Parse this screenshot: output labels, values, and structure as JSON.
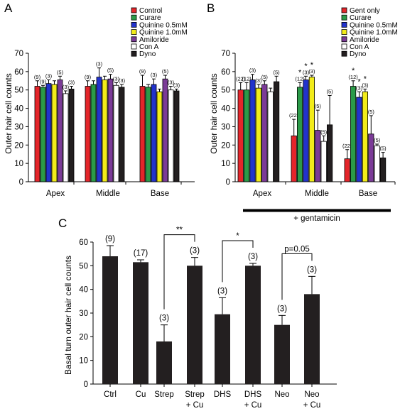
{
  "colors": {
    "control": "#e4252a",
    "curare": "#2b9a48",
    "quinine05": "#2233cc",
    "quinine10": "#f2ec1a",
    "amiloride": "#7b3b97",
    "cona": "#ffffff",
    "dyno": "#231f20",
    "black_bar": "#231f20"
  },
  "panels": {
    "a": {
      "letter": "A"
    },
    "b": {
      "letter": "B",
      "bracket_label": "+ gentamicin"
    },
    "c": {
      "letter": "C"
    }
  },
  "chart_data": [
    {
      "id": "A",
      "type": "bar",
      "ylabel": "Outer hair cell counts",
      "ylim": [
        0,
        70
      ],
      "yticks": [
        0,
        10,
        20,
        30,
        40,
        50,
        60,
        70
      ],
      "grid": false,
      "legend_position": "top-right",
      "categories": [
        "Apex",
        "Middle",
        "Base"
      ],
      "series": [
        {
          "name": "Control",
          "color_key": "control",
          "values": [
            52,
            52,
            52
          ],
          "errors": [
            3,
            3,
            6
          ],
          "n": [
            "(9)",
            "(9)",
            "(9)"
          ]
        },
        {
          "name": "Curare",
          "color_key": "curare",
          "values": [
            51.5,
            53,
            51.5
          ],
          "errors": [
            1,
            2,
            1.5
          ],
          "n": [
            "(9)",
            "",
            ""
          ]
        },
        {
          "name": "Quinine 0.5mM",
          "color_key": "quinine05",
          "values": [
            53.5,
            57,
            53
          ],
          "errors": [
            2,
            5,
            3
          ],
          "n": [
            "(3)",
            "(3)",
            "(3)"
          ]
        },
        {
          "name": "Quinine 1.0mM",
          "color_key": "quinine10",
          "values": [
            53,
            55.5,
            49
          ],
          "errors": [
            2,
            2,
            1.5
          ],
          "n": [
            "",
            "",
            ""
          ]
        },
        {
          "name": "Amiloride",
          "color_key": "amiloride",
          "values": [
            55.5,
            56,
            56
          ],
          "errors": [
            2,
            2.5,
            2
          ],
          "n": [
            "(5)",
            "(5)",
            "(5)"
          ]
        },
        {
          "name": "Con A",
          "color_key": "cona",
          "values": [
            48,
            52.5,
            50
          ],
          "errors": [
            1.5,
            1.5,
            2
          ],
          "n": [
            "(3)",
            "(3)",
            "(3)"
          ]
        },
        {
          "name": "Dyno",
          "color_key": "dyno",
          "values": [
            50.5,
            51.5,
            49.5
          ],
          "errors": [
            1.5,
            1.5,
            1
          ],
          "n": [
            "(3)",
            "(3)",
            "(3)"
          ]
        }
      ]
    },
    {
      "id": "B",
      "type": "bar",
      "ylabel": "Outer hair cell counts",
      "ylim": [
        0,
        70
      ],
      "yticks": [
        0,
        10,
        20,
        30,
        40,
        50,
        60,
        70
      ],
      "grid": false,
      "legend_position": "top-right",
      "categories": [
        "Apex",
        "Middle",
        "Base"
      ],
      "series": [
        {
          "name": "Gent only",
          "color_key": "control",
          "values": [
            50,
            25,
            12.5
          ],
          "errors": [
            4,
            9,
            5
          ],
          "n": [
            "(22)",
            "(22)",
            "(22)"
          ],
          "stars": [
            "",
            "",
            ""
          ]
        },
        {
          "name": "Curare",
          "color_key": "curare",
          "values": [
            50,
            51.5,
            52
          ],
          "errors": [
            4,
            2.5,
            3
          ],
          "n": [
            "(12)",
            "(12)",
            "(12)"
          ],
          "stars": [
            "",
            "*",
            "*"
          ]
        },
        {
          "name": "Quinine 0.5mM",
          "color_key": "quinine05",
          "values": [
            55.5,
            55.5,
            46
          ],
          "errors": [
            3,
            2,
            3
          ],
          "n": [
            "(3)",
            "(3)",
            "(3)"
          ],
          "stars": [
            "",
            "*",
            "*"
          ]
        },
        {
          "name": "Quinine 1.0mM",
          "color_key": "quinine10",
          "values": [
            51,
            57,
            49
          ],
          "errors": [
            2,
            1,
            1.5
          ],
          "n": [
            "(3)",
            "(3)",
            "(3)"
          ],
          "stars": [
            "",
            "*",
            "*"
          ]
        },
        {
          "name": "Amiloride",
          "color_key": "amiloride",
          "values": [
            53,
            28,
            26
          ],
          "errors": [
            2,
            11,
            10
          ],
          "n": [
            "(5)",
            "(5)",
            "(5)"
          ],
          "stars": [
            "",
            "",
            ""
          ]
        },
        {
          "name": "Con A",
          "color_key": "cona",
          "values": [
            49,
            22,
            19.5
          ],
          "errors": [
            2,
            3,
            1
          ],
          "n": [
            "",
            "(5)",
            "(5)"
          ],
          "stars": [
            "",
            "",
            ""
          ]
        },
        {
          "name": "Dyno",
          "color_key": "dyno",
          "values": [
            54.5,
            31,
            13
          ],
          "errors": [
            3,
            16,
            3
          ],
          "n": [
            "(5)",
            "(5)",
            "(5)"
          ],
          "stars": [
            "",
            "",
            ""
          ]
        }
      ]
    },
    {
      "id": "C",
      "type": "bar",
      "ylabel": "Basal turn outer hair cell counts",
      "ylim": [
        0,
        60
      ],
      "yticks": [
        0,
        10,
        20,
        30,
        40,
        50,
        60
      ],
      "grid": false,
      "categories": [
        [
          "Ctrl"
        ],
        [
          "Cu"
        ],
        [
          "Strep"
        ],
        [
          "Strep",
          "+ Cu"
        ],
        [
          "DHS"
        ],
        [
          "DHS",
          "+ Cu"
        ],
        [
          "Neo"
        ],
        [
          "Neo",
          "+ Cu"
        ]
      ],
      "values": [
        54,
        51.5,
        18,
        50,
        29.5,
        50,
        25,
        38
      ],
      "errors": [
        4.5,
        1,
        7,
        3.5,
        7,
        1,
        4,
        7.5
      ],
      "n": [
        "(9)",
        "(17)",
        "(3)",
        "(3)",
        "(3)",
        "(3)",
        "(3)",
        "(3)"
      ],
      "comparisons": [
        {
          "pair": [
            2,
            3
          ],
          "label": "**"
        },
        {
          "pair": [
            4,
            5
          ],
          "label": "*"
        },
        {
          "pair": [
            6,
            7
          ],
          "label": "p=0.05"
        }
      ]
    }
  ]
}
